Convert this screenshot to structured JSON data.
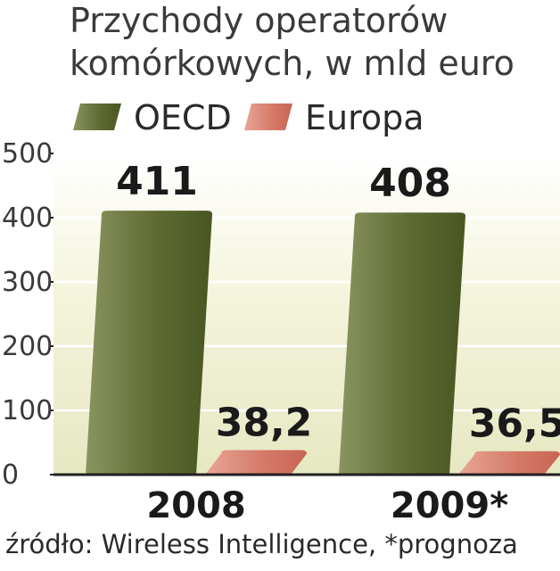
{
  "chart_data": {
    "type": "bar",
    "title_lines": [
      "Przychody operatorów",
      "komórkowych, w mld euro"
    ],
    "categories": [
      "2008",
      "2009*"
    ],
    "series": [
      {
        "name": "OECD",
        "values": [
          411,
          408
        ],
        "labels": [
          "411",
          "408"
        ],
        "color": "#5a6b2a"
      },
      {
        "name": "Europa",
        "values": [
          38.2,
          36.5
        ],
        "labels": [
          "38,2",
          "36,5"
        ],
        "color": "#d87a6a"
      }
    ],
    "yticks": [
      "0",
      "100",
      "200",
      "300",
      "400",
      "500"
    ],
    "ylim": [
      0,
      500
    ],
    "grid": true,
    "legend_position": "top-left",
    "source": "źródło: Wireless Intelligence, *prognoza"
  }
}
